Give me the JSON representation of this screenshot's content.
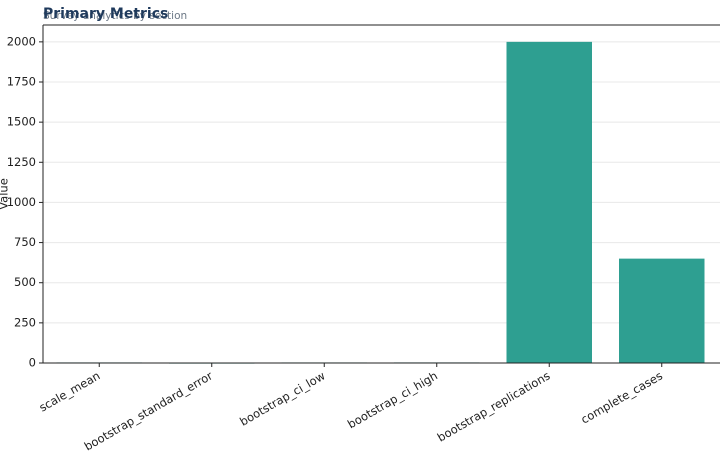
{
  "chart_data": {
    "type": "bar",
    "title": "Primary Metrics",
    "subtitle": "Survey analytics by section",
    "ylabel": "Value",
    "categories": [
      "scale_mean",
      "bootstrap_standard_error",
      "bootstrap_ci_low",
      "bootstrap_ci_high",
      "bootstrap_replications",
      "complete_cases"
    ],
    "values": [
      3.5,
      0.05,
      3.4,
      3.6,
      2000,
      650
    ],
    "color": "#2a9d8f",
    "ylim": [
      0,
      2105
    ],
    "yticks": [
      0,
      250,
      500,
      750,
      1000,
      1250,
      1500,
      1750,
      2000
    ],
    "grid": true
  }
}
